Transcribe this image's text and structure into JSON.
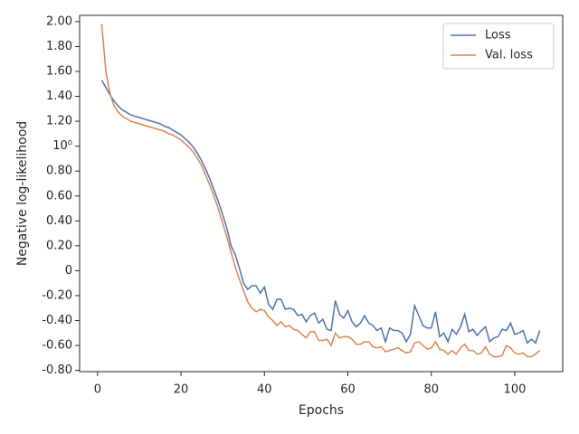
{
  "chart_data": {
    "type": "line",
    "xlabel": "Epochs",
    "ylabel": "Negative log-likelihood",
    "x": [
      1,
      2,
      3,
      4,
      5,
      6,
      7,
      8,
      9,
      10,
      11,
      12,
      13,
      14,
      15,
      16,
      17,
      18,
      19,
      20,
      21,
      22,
      23,
      24,
      25,
      26,
      27,
      28,
      29,
      30,
      31,
      32,
      33,
      34,
      35,
      36,
      37,
      38,
      39,
      40,
      41,
      42,
      43,
      44,
      45,
      46,
      47,
      48,
      49,
      50,
      51,
      52,
      53,
      54,
      55,
      56,
      57,
      58,
      59,
      60,
      61,
      62,
      63,
      64,
      65,
      66,
      67,
      68,
      69,
      70,
      71,
      72,
      73,
      74,
      75,
      76,
      77,
      78,
      79,
      80,
      81,
      82,
      83,
      84,
      85,
      86,
      87,
      88,
      89,
      90,
      91,
      92,
      93,
      94,
      95,
      96,
      97,
      98,
      99,
      100,
      101,
      102,
      103,
      104,
      105,
      106
    ],
    "series": [
      {
        "name": "Loss",
        "color": "#4c72b0",
        "values": [
          1.53,
          1.47,
          1.41,
          1.36,
          1.32,
          1.29,
          1.27,
          1.25,
          1.24,
          1.23,
          1.22,
          1.21,
          1.2,
          1.19,
          1.18,
          1.16,
          1.15,
          1.13,
          1.11,
          1.09,
          1.06,
          1.03,
          0.99,
          0.94,
          0.88,
          0.81,
          0.73,
          0.64,
          0.55,
          0.45,
          0.34,
          0.2,
          0.13,
          0.02,
          -0.1,
          -0.15,
          -0.12,
          -0.12,
          -0.18,
          -0.13,
          -0.27,
          -0.31,
          -0.23,
          -0.23,
          -0.31,
          -0.3,
          -0.31,
          -0.36,
          -0.35,
          -0.41,
          -0.36,
          -0.34,
          -0.42,
          -0.39,
          -0.47,
          -0.48,
          -0.24,
          -0.35,
          -0.38,
          -0.32,
          -0.41,
          -0.45,
          -0.42,
          -0.36,
          -0.42,
          -0.44,
          -0.48,
          -0.46,
          -0.57,
          -0.46,
          -0.48,
          -0.48,
          -0.5,
          -0.57,
          -0.51,
          -0.28,
          -0.36,
          -0.44,
          -0.46,
          -0.46,
          -0.33,
          -0.53,
          -0.5,
          -0.57,
          -0.47,
          -0.51,
          -0.45,
          -0.35,
          -0.49,
          -0.47,
          -0.52,
          -0.48,
          -0.45,
          -0.57,
          -0.54,
          -0.53,
          -0.47,
          -0.48,
          -0.42,
          -0.51,
          -0.5,
          -0.48,
          -0.58,
          -0.55,
          -0.58,
          -0.48
        ]
      },
      {
        "name": "Val. loss",
        "color": "#dd8452",
        "values": [
          1.98,
          1.6,
          1.42,
          1.32,
          1.27,
          1.24,
          1.22,
          1.2,
          1.19,
          1.18,
          1.17,
          1.16,
          1.15,
          1.14,
          1.13,
          1.12,
          1.1,
          1.09,
          1.07,
          1.05,
          1.02,
          0.99,
          0.95,
          0.9,
          0.84,
          0.76,
          0.68,
          0.59,
          0.49,
          0.38,
          0.27,
          0.15,
          0.03,
          -0.07,
          -0.16,
          -0.25,
          -0.3,
          -0.33,
          -0.31,
          -0.32,
          -0.37,
          -0.4,
          -0.44,
          -0.41,
          -0.45,
          -0.44,
          -0.47,
          -0.48,
          -0.51,
          -0.54,
          -0.49,
          -0.49,
          -0.56,
          -0.56,
          -0.55,
          -0.6,
          -0.5,
          -0.54,
          -0.53,
          -0.53,
          -0.55,
          -0.59,
          -0.59,
          -0.57,
          -0.57,
          -0.61,
          -0.62,
          -0.61,
          -0.65,
          -0.64,
          -0.63,
          -0.62,
          -0.64,
          -0.66,
          -0.65,
          -0.58,
          -0.57,
          -0.6,
          -0.63,
          -0.62,
          -0.57,
          -0.63,
          -0.64,
          -0.67,
          -0.64,
          -0.67,
          -0.62,
          -0.59,
          -0.64,
          -0.64,
          -0.67,
          -0.66,
          -0.61,
          -0.67,
          -0.69,
          -0.69,
          -0.68,
          -0.6,
          -0.62,
          -0.66,
          -0.67,
          -0.66,
          -0.69,
          -0.69,
          -0.67,
          -0.64
        ]
      }
    ],
    "xlim": [
      -4.3,
      111.5
    ],
    "xticks": [
      0,
      20,
      40,
      60,
      80,
      100
    ],
    "ylim": [
      -0.81,
      2.05
    ],
    "yticks": [
      {
        "value": 2.0,
        "label": "2.00"
      },
      {
        "value": 1.8,
        "label": "1.80"
      },
      {
        "value": 1.6,
        "label": "1.60"
      },
      {
        "value": 1.4,
        "label": "1.40"
      },
      {
        "value": 1.2,
        "label": "1.20"
      },
      {
        "value": 1.0,
        "label": "10⁰"
      },
      {
        "value": 0.8,
        "label": "0.80"
      },
      {
        "value": 0.6,
        "label": "0.60"
      },
      {
        "value": 0.4,
        "label": "0.40"
      },
      {
        "value": 0.2,
        "label": "0.20"
      },
      0,
      {
        "value": -0.2,
        "label": "-0.20"
      },
      {
        "value": -0.4,
        "label": "-0.40"
      },
      {
        "value": -0.6,
        "label": "-0.60"
      },
      {
        "value": -0.8,
        "label": "-0.80"
      }
    ],
    "legend": "upper right",
    "grid": false
  }
}
